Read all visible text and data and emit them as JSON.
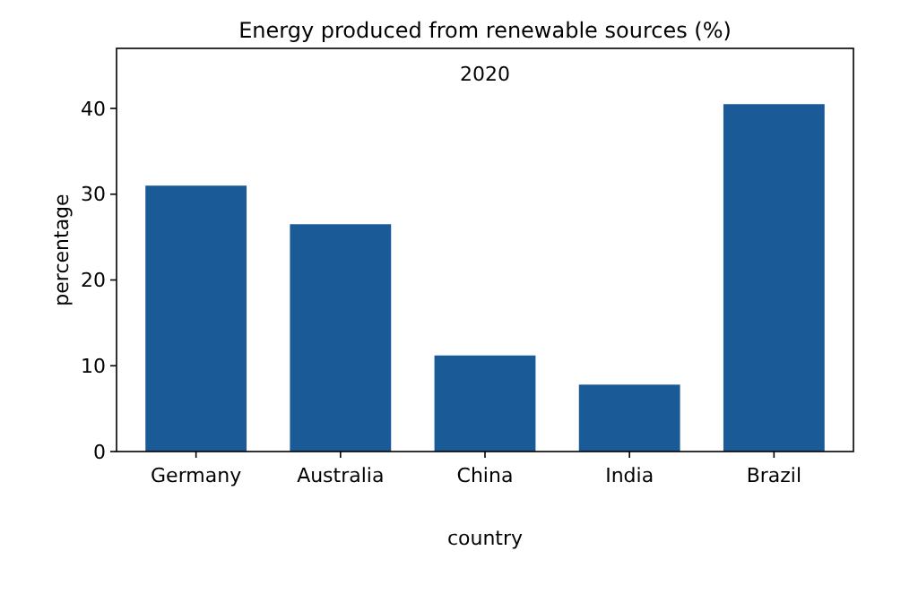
{
  "chart_data": {
    "type": "bar",
    "title": "Energy produced from renewable sources (%)",
    "subtitle": "2020",
    "xlabel": "country",
    "ylabel": "percentage",
    "categories": [
      "Germany",
      "Australia",
      "China",
      "India",
      "Brazil"
    ],
    "values": [
      31.0,
      26.5,
      11.2,
      7.8,
      40.5
    ],
    "color": "#1a5a96",
    "ylim": [
      0,
      47
    ],
    "yticks": [
      0,
      10,
      20,
      30,
      40
    ],
    "grid": false
  }
}
